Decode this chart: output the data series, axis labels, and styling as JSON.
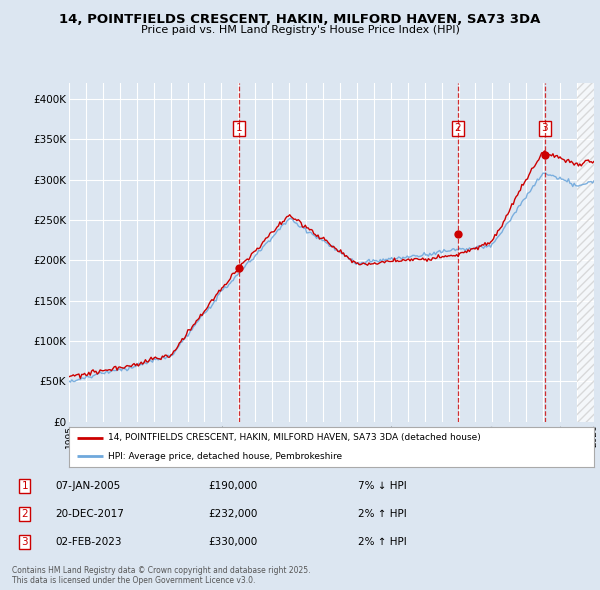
{
  "title": "14, POINTFIELDS CRESCENT, HAKIN, MILFORD HAVEN, SA73 3DA",
  "subtitle": "Price paid vs. HM Land Registry's House Price Index (HPI)",
  "background_color": "#dce6f1",
  "plot_bg_color": "#dce6f1",
  "property_label": "14, POINTFIELDS CRESCENT, HAKIN, MILFORD HAVEN, SA73 3DA (detached house)",
  "hpi_label": "HPI: Average price, detached house, Pembrokeshire",
  "property_color": "#cc0000",
  "hpi_color": "#6fa8dc",
  "sale_year_nums": [
    2005.03,
    2017.97,
    2023.09
  ],
  "sale_prices": [
    190000,
    232000,
    330000
  ],
  "ylim": [
    0,
    420000
  ],
  "yticks": [
    0,
    50000,
    100000,
    150000,
    200000,
    250000,
    300000,
    350000,
    400000
  ],
  "ytick_labels": [
    "£0",
    "£50K",
    "£100K",
    "£150K",
    "£200K",
    "£250K",
    "£300K",
    "£350K",
    "£400K"
  ],
  "xmin": 1995,
  "xmax": 2026,
  "footer": "Contains HM Land Registry data © Crown copyright and database right 2025.\nThis data is licensed under the Open Government Licence v3.0.",
  "sale_dates_str": [
    "07-JAN-2005",
    "20-DEC-2017",
    "02-FEB-2023"
  ],
  "sale_prices_str": [
    "£190,000",
    "£232,000",
    "£330,000"
  ],
  "sale_hpi_str": [
    "7% ↓ HPI",
    "2% ↑ HPI",
    "2% ↑ HPI"
  ]
}
